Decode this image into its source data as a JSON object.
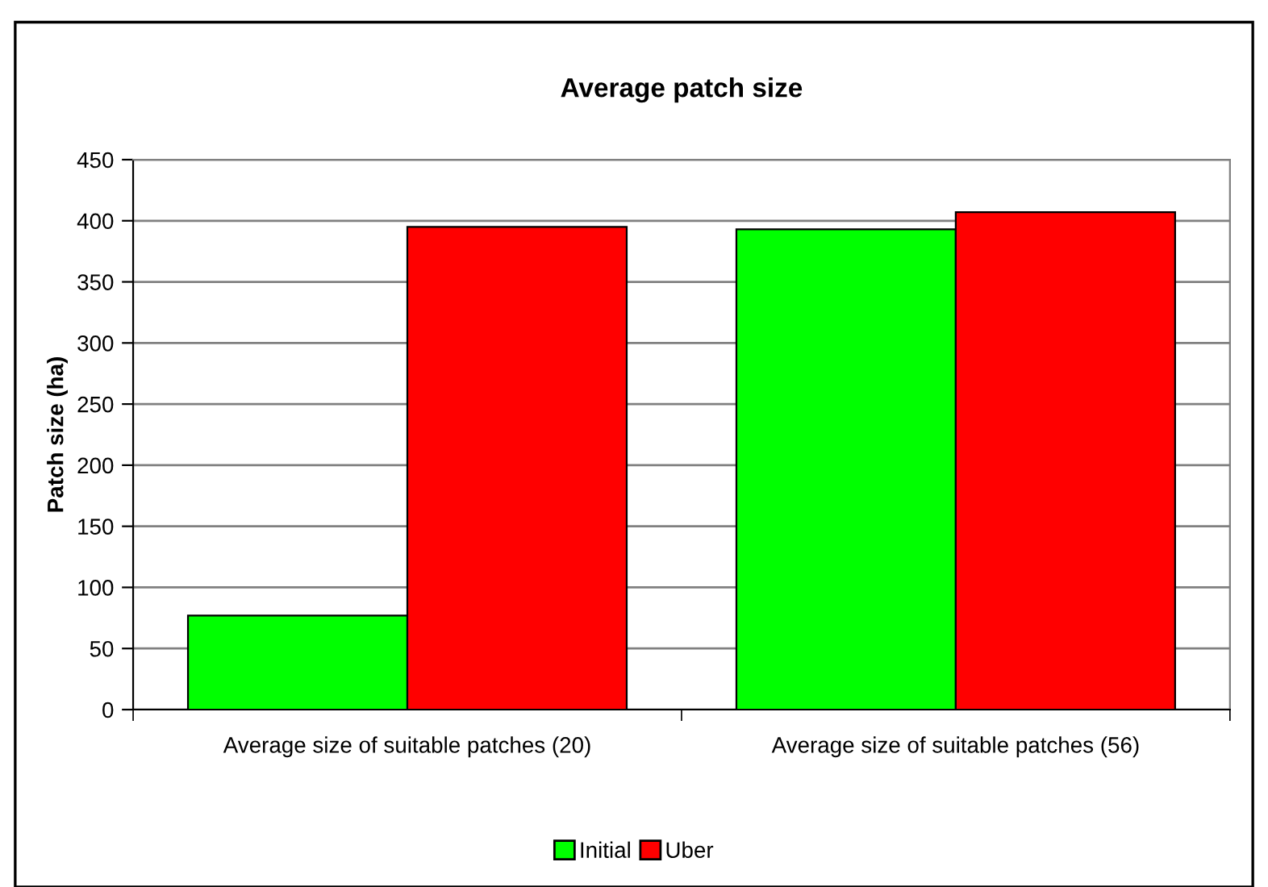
{
  "chart_data": {
    "type": "bar",
    "title": "Average patch size",
    "ylabel": "Patch size (ha)",
    "categories": [
      "Average size of suitable patches (20)",
      "Average size of suitable patches (56)"
    ],
    "series": [
      {
        "name": "Initial",
        "color": "#00ff00",
        "values": [
          77,
          393
        ]
      },
      {
        "name": "Uber",
        "color": "#ff0000",
        "values": [
          395,
          407
        ]
      }
    ],
    "ylim": [
      0,
      450
    ],
    "yticks": [
      0,
      50,
      100,
      150,
      200,
      250,
      300,
      350,
      400,
      450
    ],
    "grid": "y",
    "legend": "bottom"
  }
}
